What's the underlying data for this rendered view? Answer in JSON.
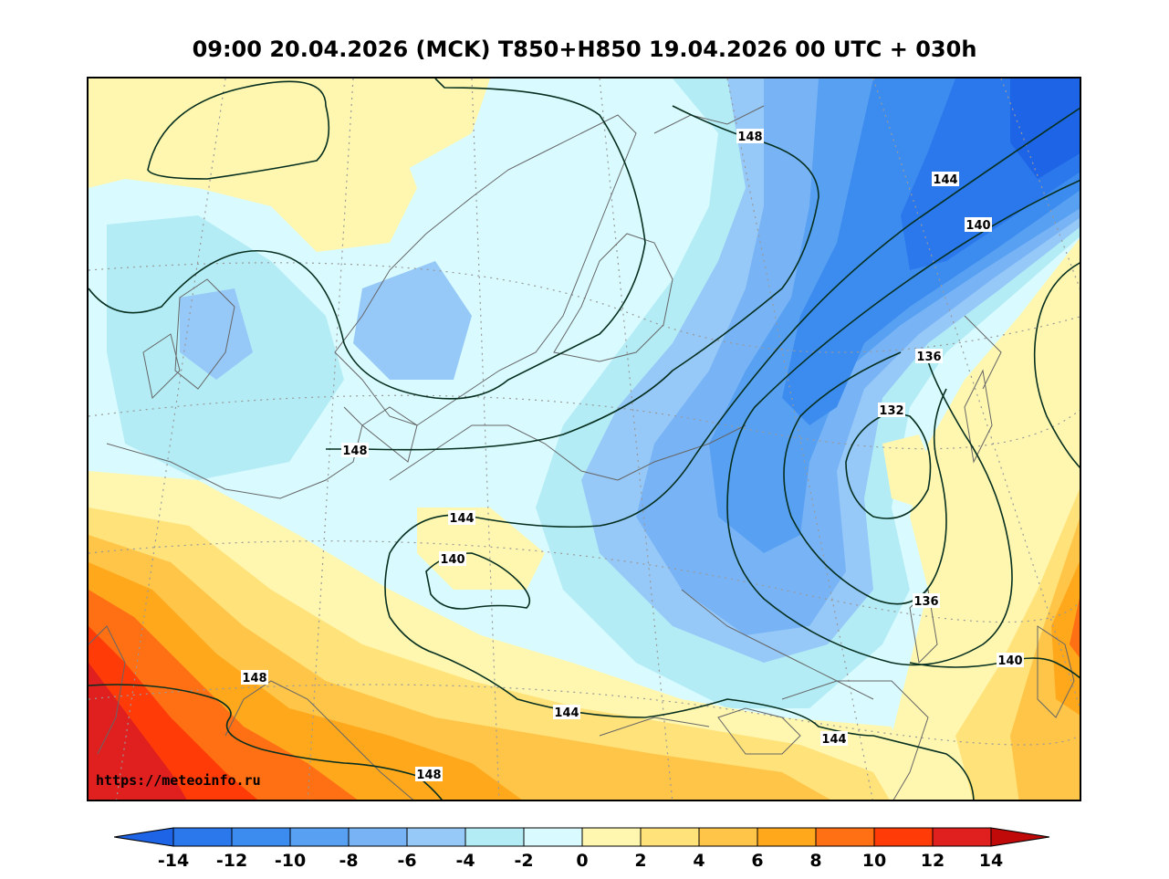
{
  "title": "09:00 20.04.2026 (MCK) T850+H850 19.04.2026 00 UTC + 030h",
  "site_url": "https://meteoinfo.ru",
  "colorbar": {
    "ticks": [
      "-14",
      "-12",
      "-10",
      "-8",
      "-6",
      "-4",
      "-2",
      "0",
      "2",
      "4",
      "6",
      "8",
      "10",
      "12",
      "14"
    ],
    "colors": [
      "#1e64e6",
      "#2a78ec",
      "#3c8cf0",
      "#58a0f2",
      "#78b4f5",
      "#96c8f8",
      "#b4ecf6",
      "#d9fbff",
      "#fff7b0",
      "#ffe27a",
      "#ffc548",
      "#ffa81c",
      "#ff7014",
      "#ff3c08",
      "#e01f1f",
      "#c00a0a"
    ]
  },
  "contour_labels": {
    "c148_north": "148",
    "c144_ne": "144",
    "c140_ne": "140",
    "c136_upper": "136",
    "c132": "132",
    "c148_baltic": "148",
    "c144_west": "144",
    "c140_west": "140",
    "c136_lower": "136",
    "c140_east": "140",
    "c148_sw": "148",
    "c144_south": "144",
    "c144_se": "144",
    "c148_bottom": "148"
  }
}
